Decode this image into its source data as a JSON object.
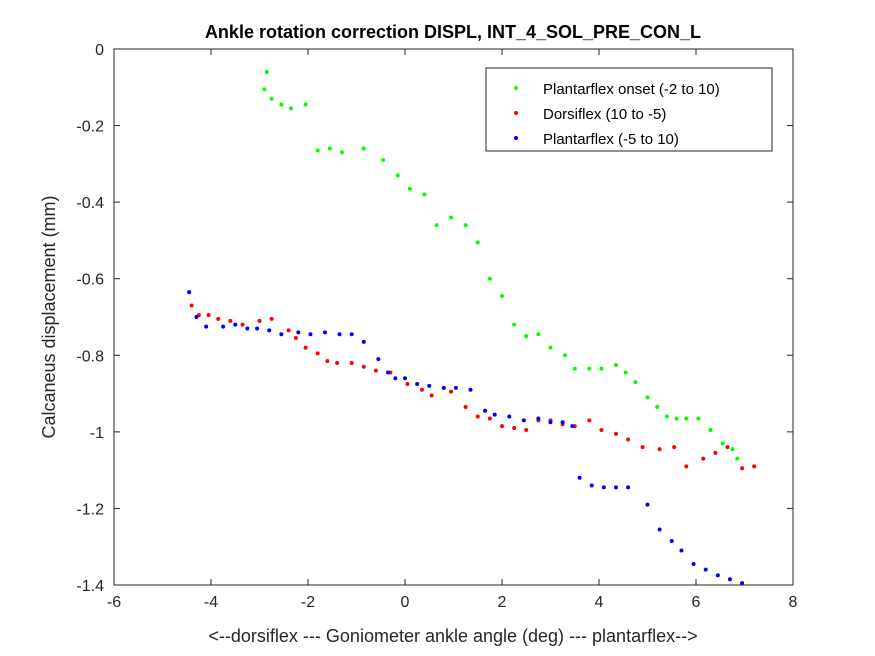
{
  "chart_data": {
    "type": "scatter",
    "title": "Ankle rotation correction DISPL, INT_4_SOL_PRE_CON_L",
    "xlabel": "<--dorsiflex --- Goniometer ankle angle (deg) --- plantarflex-->",
    "ylabel": "Calcaneus displacement (mm)",
    "xlim": [
      -6,
      8
    ],
    "ylim": [
      -1.4,
      0
    ],
    "xticks": [
      -6,
      -4,
      -2,
      0,
      2,
      4,
      6,
      8
    ],
    "yticks": [
      0,
      -0.2,
      -0.4,
      -0.6,
      -0.8,
      -1,
      -1.2,
      -1.4
    ],
    "xtick_labels": [
      "-6",
      "-4",
      "-2",
      "0",
      "2",
      "4",
      "6",
      "8"
    ],
    "ytick_labels": [
      "0",
      "-0.2",
      "-0.4",
      "-0.6",
      "-0.8",
      "-1",
      "-1.2",
      "-1.4"
    ],
    "grid": false,
    "legend": "top-right",
    "series": [
      {
        "name": "Plantarflex onset (-2 to 10)",
        "color": "#00ff00",
        "points": [
          [
            -2.85,
            -0.06
          ],
          [
            -2.9,
            -0.105
          ],
          [
            -2.75,
            -0.13
          ],
          [
            -2.55,
            -0.145
          ],
          [
            -2.35,
            -0.155
          ],
          [
            -2.05,
            -0.145
          ],
          [
            -1.8,
            -0.265
          ],
          [
            -1.55,
            -0.26
          ],
          [
            -1.3,
            -0.27
          ],
          [
            -0.85,
            -0.26
          ],
          [
            -0.45,
            -0.29
          ],
          [
            -0.15,
            -0.33
          ],
          [
            0.1,
            -0.365
          ],
          [
            0.4,
            -0.38
          ],
          [
            0.65,
            -0.46
          ],
          [
            0.95,
            -0.44
          ],
          [
            1.25,
            -0.46
          ],
          [
            1.5,
            -0.505
          ],
          [
            1.75,
            -0.6
          ],
          [
            2.0,
            -0.645
          ],
          [
            2.25,
            -0.72
          ],
          [
            2.5,
            -0.75
          ],
          [
            2.75,
            -0.745
          ],
          [
            3.0,
            -0.78
          ],
          [
            3.3,
            -0.8
          ],
          [
            3.5,
            -0.835
          ],
          [
            3.8,
            -0.835
          ],
          [
            4.05,
            -0.835
          ],
          [
            4.35,
            -0.825
          ],
          [
            4.55,
            -0.845
          ],
          [
            4.75,
            -0.87
          ],
          [
            5.0,
            -0.91
          ],
          [
            5.2,
            -0.935
          ],
          [
            5.4,
            -0.96
          ],
          [
            5.6,
            -0.965
          ],
          [
            5.8,
            -0.965
          ],
          [
            6.05,
            -0.965
          ],
          [
            6.3,
            -0.995
          ],
          [
            6.55,
            -1.03
          ],
          [
            6.75,
            -1.045
          ],
          [
            6.85,
            -1.07
          ]
        ]
      },
      {
        "name": "Dorsiflex (10 to -5)",
        "color": "#ff0000",
        "points": [
          [
            7.2,
            -1.09
          ],
          [
            6.95,
            -1.095
          ],
          [
            6.65,
            -1.04
          ],
          [
            6.4,
            -1.055
          ],
          [
            6.15,
            -1.07
          ],
          [
            5.8,
            -1.09
          ],
          [
            5.55,
            -1.04
          ],
          [
            5.25,
            -1.045
          ],
          [
            4.9,
            -1.04
          ],
          [
            4.6,
            -1.02
          ],
          [
            4.35,
            -1.005
          ],
          [
            4.05,
            -0.995
          ],
          [
            3.8,
            -0.97
          ],
          [
            3.5,
            -0.985
          ],
          [
            3.25,
            -0.98
          ],
          [
            3.0,
            -0.97
          ],
          [
            2.75,
            -0.97
          ],
          [
            2.5,
            -0.995
          ],
          [
            2.25,
            -0.99
          ],
          [
            2.0,
            -0.985
          ],
          [
            1.75,
            -0.965
          ],
          [
            1.5,
            -0.96
          ],
          [
            1.25,
            -0.935
          ],
          [
            0.95,
            -0.895
          ],
          [
            0.55,
            -0.905
          ],
          [
            0.35,
            -0.89
          ],
          [
            0.05,
            -0.875
          ],
          [
            -0.3,
            -0.845
          ],
          [
            -0.6,
            -0.84
          ],
          [
            -0.85,
            -0.83
          ],
          [
            -1.1,
            -0.82
          ],
          [
            -1.4,
            -0.82
          ],
          [
            -1.6,
            -0.815
          ],
          [
            -1.8,
            -0.795
          ],
          [
            -2.05,
            -0.78
          ],
          [
            -2.25,
            -0.755
          ],
          [
            -2.4,
            -0.735
          ],
          [
            -2.75,
            -0.705
          ],
          [
            -3.0,
            -0.71
          ],
          [
            -3.35,
            -0.72
          ],
          [
            -3.6,
            -0.71
          ],
          [
            -3.85,
            -0.705
          ],
          [
            -4.05,
            -0.695
          ],
          [
            -4.25,
            -0.695
          ],
          [
            -4.4,
            -0.67
          ]
        ]
      },
      {
        "name": "Plantarflex (-5 to 10)",
        "color": "#0000ff",
        "points": [
          [
            -4.45,
            -0.635
          ],
          [
            -4.3,
            -0.7
          ],
          [
            -4.1,
            -0.725
          ],
          [
            -3.75,
            -0.725
          ],
          [
            -3.5,
            -0.72
          ],
          [
            -3.25,
            -0.73
          ],
          [
            -3.05,
            -0.73
          ],
          [
            -2.8,
            -0.735
          ],
          [
            -2.55,
            -0.745
          ],
          [
            -2.2,
            -0.74
          ],
          [
            -1.95,
            -0.745
          ],
          [
            -1.65,
            -0.74
          ],
          [
            -1.35,
            -0.745
          ],
          [
            -1.1,
            -0.745
          ],
          [
            -0.85,
            -0.765
          ],
          [
            -0.55,
            -0.81
          ],
          [
            -0.35,
            -0.845
          ],
          [
            -0.2,
            -0.86
          ],
          [
            0.0,
            -0.86
          ],
          [
            0.25,
            -0.875
          ],
          [
            0.5,
            -0.88
          ],
          [
            0.8,
            -0.885
          ],
          [
            1.05,
            -0.885
          ],
          [
            1.35,
            -0.89
          ],
          [
            1.65,
            -0.945
          ],
          [
            1.85,
            -0.955
          ],
          [
            2.15,
            -0.96
          ],
          [
            2.45,
            -0.97
          ],
          [
            2.75,
            -0.965
          ],
          [
            3.0,
            -0.975
          ],
          [
            3.25,
            -0.975
          ],
          [
            3.45,
            -0.985
          ],
          [
            3.6,
            -1.12
          ],
          [
            3.85,
            -1.14
          ],
          [
            4.1,
            -1.145
          ],
          [
            4.35,
            -1.145
          ],
          [
            4.6,
            -1.145
          ],
          [
            5.0,
            -1.19
          ],
          [
            5.25,
            -1.255
          ],
          [
            5.5,
            -1.285
          ],
          [
            5.7,
            -1.31
          ],
          [
            5.95,
            -1.345
          ],
          [
            6.2,
            -1.36
          ],
          [
            6.45,
            -1.375
          ],
          [
            6.7,
            -1.385
          ],
          [
            6.95,
            -1.395
          ]
        ]
      }
    ]
  }
}
